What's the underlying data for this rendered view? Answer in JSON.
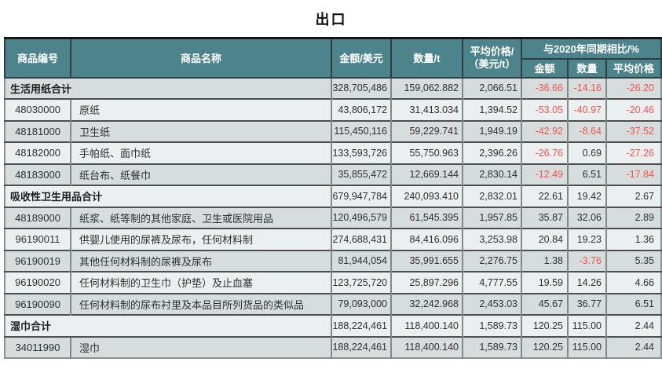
{
  "title": "出口",
  "colors": {
    "header_bg": "#4d838a",
    "header_text": "#ffffff",
    "row_dark": "#d7dddd",
    "row_light": "#ecefef",
    "negative_value": "#ef5350",
    "body_text": "#2f2f2f"
  },
  "table": {
    "headers": {
      "code": "商品编号",
      "name": "商品名称",
      "amount": "金额/美元",
      "quantity": "数量/t",
      "avg_price": "平均价格/\n（美元/t）",
      "yoy_group": "与2020年同期相比/%",
      "yoy_amount": "金额",
      "yoy_quantity": "数量",
      "yoy_avg_price": "平均价格"
    },
    "rows": [
      {
        "is_total": true,
        "code": "",
        "name": "生活用纸合计",
        "amount": "328,705,486",
        "quantity": "159,062.882",
        "avg_price": "2,066.51",
        "yoy_amount": "-36.66",
        "yoy_quantity": "-14.16",
        "yoy_avg_price": "-26.20"
      },
      {
        "is_total": false,
        "code": "48030000",
        "name": "原纸",
        "amount": "43,806,172",
        "quantity": "31,413.034",
        "avg_price": "1,394.52",
        "yoy_amount": "-53.05",
        "yoy_quantity": "-40.97",
        "yoy_avg_price": "-20.46"
      },
      {
        "is_total": false,
        "code": "48181000",
        "name": "卫生纸",
        "amount": "115,450,116",
        "quantity": "59,229.741",
        "avg_price": "1,949.19",
        "yoy_amount": "-42.92",
        "yoy_quantity": "-8.64",
        "yoy_avg_price": "-37.52"
      },
      {
        "is_total": false,
        "code": "48182000",
        "name": "手帕纸、面巾纸",
        "amount": "133,593,726",
        "quantity": "55,750.963",
        "avg_price": "2,396.26",
        "yoy_amount": "-26.76",
        "yoy_quantity": "0.69",
        "yoy_avg_price": "-27.26"
      },
      {
        "is_total": false,
        "code": "48183000",
        "name": "纸台布、纸餐巾",
        "amount": "35,855,472",
        "quantity": "12,669.144",
        "avg_price": "2,830.14",
        "yoy_amount": "-12.49",
        "yoy_quantity": "6.51",
        "yoy_avg_price": "-17.84"
      },
      {
        "is_total": true,
        "code": "",
        "name": "吸收性卫生用品合计",
        "amount": "679,947,784",
        "quantity": "240,093.410",
        "avg_price": "2,832.01",
        "yoy_amount": "22.61",
        "yoy_quantity": "19.42",
        "yoy_avg_price": "2.67"
      },
      {
        "is_total": false,
        "code": "48189000",
        "name": "纸浆、纸等制的其他家庭、卫生或医院用品",
        "amount": "120,496,579",
        "quantity": "61,545.395",
        "avg_price": "1,957.85",
        "yoy_amount": "35.87",
        "yoy_quantity": "32.06",
        "yoy_avg_price": "2.89"
      },
      {
        "is_total": false,
        "code": "96190011",
        "name": "供婴儿使用的尿裤及尿布，任何材料制",
        "amount": "274,688,431",
        "quantity": "84,416.096",
        "avg_price": "3,253.98",
        "yoy_amount": "20.84",
        "yoy_quantity": "19.23",
        "yoy_avg_price": "1.36"
      },
      {
        "is_total": false,
        "code": "96190019",
        "name": "其他任何材料制的尿裤及尿布",
        "amount": "81,944,054",
        "quantity": "35,991.655",
        "avg_price": "2,276.75",
        "yoy_amount": "1.38",
        "yoy_quantity": "-3.76",
        "yoy_avg_price": "5.35"
      },
      {
        "is_total": false,
        "code": "96190020",
        "name": "任何材料制的卫生巾（护垫）及止血塞",
        "amount": "123,725,720",
        "quantity": "25,897.296",
        "avg_price": "4,777.55",
        "yoy_amount": "19.59",
        "yoy_quantity": "14.26",
        "yoy_avg_price": "4.66"
      },
      {
        "is_total": false,
        "code": "96190090",
        "name": "任何材料制的尿布衬里及本品目所列货品的类似品",
        "amount": "79,093,000",
        "quantity": "32,242.968",
        "avg_price": "2,453.03",
        "yoy_amount": "45.67",
        "yoy_quantity": "36.77",
        "yoy_avg_price": "6.51"
      },
      {
        "is_total": true,
        "code": "",
        "name": "湿巾合计",
        "amount": "188,224,461",
        "quantity": "118,400.140",
        "avg_price": "1,589.73",
        "yoy_amount": "120.25",
        "yoy_quantity": "115.00",
        "yoy_avg_price": "2.44"
      },
      {
        "is_total": false,
        "code": "34011990",
        "name": "湿巾",
        "amount": "188,224,461",
        "quantity": "118,400.140",
        "avg_price": "1,589.73",
        "yoy_amount": "120.25",
        "yoy_quantity": "115.00",
        "yoy_avg_price": "2.44"
      }
    ]
  }
}
